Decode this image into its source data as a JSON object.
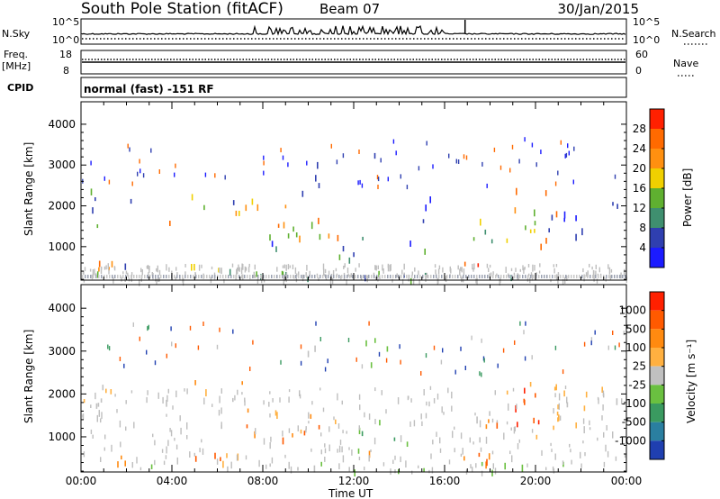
{
  "header": {
    "station": "South Pole Station (fitACF)",
    "beam": "Beam 07",
    "date": "30/Jan/2015"
  },
  "top_panels": {
    "nsky_label": "N.Sky",
    "nsearch_label": "N.Search",
    "freq_label_line1": "Freq.",
    "freq_label_line2": "[MHz]",
    "nave_label": "Nave",
    "cpid_label": "CPID",
    "left_ticks_sky": [
      "10^5",
      "10^0"
    ],
    "right_ticks_sky": [
      "10^5",
      "10^0"
    ],
    "left_ticks_freq": [
      "18",
      "8"
    ],
    "right_ticks_freq": [
      "60",
      "0"
    ],
    "cpid_text": "normal (fast) -151 RF"
  },
  "chart_data": [
    {
      "type": "heatmap",
      "title": "",
      "xlabel": "Time UT",
      "ylabel": "Slant Range [km]",
      "x_ticks": [
        "00:00",
        "04:00",
        "08:00",
        "12:00",
        "16:00",
        "20:00",
        "00:00"
      ],
      "y_ticks": [
        1000,
        2000,
        3000,
        4000
      ],
      "ylim": [
        180,
        4550
      ],
      "colorbar_label": "Power [dB]",
      "colorbar_ticks": [
        4,
        8,
        12,
        16,
        20,
        24,
        28
      ],
      "colorbar_colors": [
        "#1b1bff",
        "#2f3fb0",
        "#3f8f6f",
        "#5fb030",
        "#f0d000",
        "#ff9010",
        "#ff6a00",
        "#ff2000"
      ],
      "ground_scatter_color": "#bebebe"
    },
    {
      "type": "heatmap",
      "title": "",
      "xlabel": "Time UT",
      "ylabel": "Slant Range [km]",
      "x_ticks": [
        "00:00",
        "04:00",
        "08:00",
        "12:00",
        "16:00",
        "20:00",
        "00:00"
      ],
      "y_ticks": [
        1000,
        2000,
        3000,
        4000
      ],
      "ylim": [
        180,
        4550
      ],
      "colorbar_label": "Velocity [m s⁻¹]",
      "colorbar_ticks": [
        "1000",
        "500",
        "100",
        "25",
        "-25",
        "-100",
        "-500",
        "-1000"
      ],
      "colorbar_colors": [
        "#1f3fb0",
        "#2a7fa0",
        "#3a9a60",
        "#6ac040",
        "#c0c0c0",
        "#ffb040",
        "#ff8a10",
        "#ff5a00",
        "#ff2000"
      ],
      "ground_scatter_color": "#bebebe"
    }
  ]
}
